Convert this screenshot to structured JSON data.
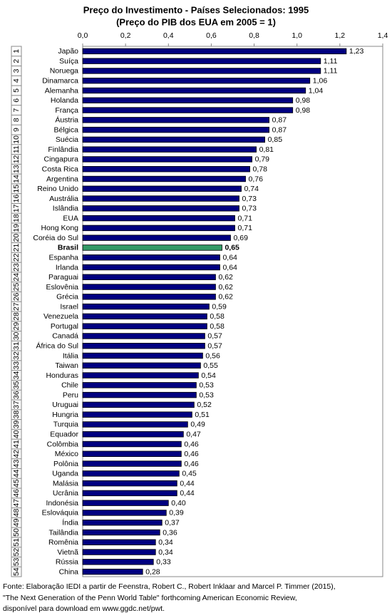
{
  "chart_data": {
    "type": "bar",
    "orientation": "horizontal",
    "title": "Preço do Investimento - Países Selecionados: 1995",
    "subtitle": "(Preço do PIB dos EUA em 2005 = 1)",
    "categories": [
      "Japão",
      "Suíça",
      "Noruega",
      "Dinamarca",
      "Alemanha",
      "Holanda",
      "França",
      "Áustria",
      "Bélgica",
      "Suécia",
      "Finlândia",
      "Cingapura",
      "Costa Rica",
      "Argentina",
      "Reino Unido",
      "Austrália",
      "Islândia",
      "EUA",
      "Hong Kong",
      "Coréia do Sul",
      "Brasil",
      "Espanha",
      "Irlanda",
      "Paraguai",
      "Eslovênia",
      "Grécia",
      "Israel",
      "Venezuela",
      "Portugal",
      "Canadá",
      "África do Sul",
      "Itália",
      "Taiwan",
      "Honduras",
      "Chile",
      "Peru",
      "Uruguai",
      "Hungria",
      "Turquia",
      "Equador",
      "Colômbia",
      "México",
      "Polônia",
      "Uganda",
      "Malásia",
      "Ucrânia",
      "Indonésia",
      "Eslováquia",
      "Índia",
      "Tailândia",
      "Romênia",
      "Vietnã",
      "Rússia",
      "China"
    ],
    "ranks": [
      1,
      2,
      3,
      4,
      5,
      6,
      7,
      8,
      9,
      10,
      11,
      12,
      13,
      14,
      15,
      16,
      17,
      18,
      19,
      20,
      21,
      22,
      23,
      24,
      25,
      26,
      27,
      28,
      29,
      30,
      31,
      32,
      33,
      34,
      35,
      36,
      37,
      38,
      39,
      40,
      41,
      42,
      43,
      44,
      45,
      46,
      47,
      48,
      49,
      50,
      51,
      52,
      53,
      54
    ],
    "values": [
      1.23,
      1.11,
      1.11,
      1.06,
      1.04,
      0.98,
      0.98,
      0.87,
      0.87,
      0.85,
      0.81,
      0.79,
      0.78,
      0.76,
      0.74,
      0.73,
      0.73,
      0.71,
      0.71,
      0.69,
      0.65,
      0.64,
      0.64,
      0.62,
      0.62,
      0.62,
      0.59,
      0.58,
      0.58,
      0.57,
      0.57,
      0.56,
      0.55,
      0.54,
      0.53,
      0.53,
      0.52,
      0.51,
      0.49,
      0.47,
      0.46,
      0.46,
      0.46,
      0.45,
      0.44,
      0.44,
      0.4,
      0.39,
      0.37,
      0.36,
      0.34,
      0.34,
      0.33,
      0.28
    ],
    "value_labels": [
      "1,23",
      "1,11",
      "1,11",
      "1,06",
      "1,04",
      "0,98",
      "0,98",
      "0,87",
      "0,87",
      "0,85",
      "0,81",
      "0,79",
      "0,78",
      "0,76",
      "0,74",
      "0,73",
      "0,73",
      "0,71",
      "0,71",
      "0,69",
      "0,65",
      "0,64",
      "0,64",
      "0,62",
      "0,62",
      "0,62",
      "0,59",
      "0,58",
      "0,58",
      "0,57",
      "0,57",
      "0,56",
      "0,55",
      "0,54",
      "0,53",
      "0,53",
      "0,52",
      "0,51",
      "0,49",
      "0,47",
      "0,46",
      "0,46",
      "0,46",
      "0,45",
      "0,44",
      "0,44",
      "0,40",
      "0,39",
      "0,37",
      "0,36",
      "0,34",
      "0,34",
      "0,33",
      "0,28"
    ],
    "color": "#000080",
    "colors": [
      "#000080",
      "#000080",
      "#000080",
      "#000080",
      "#000080",
      "#000080",
      "#000080",
      "#000080",
      "#000080",
      "#000080",
      "#000080",
      "#000080",
      "#000080",
      "#000080",
      "#000080",
      "#000080",
      "#000080",
      "#000080",
      "#000080",
      "#000080",
      "#339966",
      "#000080",
      "#000080",
      "#000080",
      "#000080",
      "#000080",
      "#000080",
      "#000080",
      "#000080",
      "#000080",
      "#000080",
      "#000080",
      "#000080",
      "#000080",
      "#000080",
      "#000080",
      "#000080",
      "#000080",
      "#000080",
      "#000080",
      "#000080",
      "#000080",
      "#000080",
      "#000080",
      "#000080",
      "#000080",
      "#000080",
      "#000080",
      "#000080",
      "#000080",
      "#000080",
      "#000080",
      "#000080",
      "#000080"
    ],
    "xlim": [
      0,
      1.4
    ],
    "xticks": [
      {
        "value": 0,
        "label": "0,0"
      },
      {
        "value": 0.2,
        "label": "0,2"
      },
      {
        "value": 0.4,
        "label": "0,4"
      },
      {
        "value": 0.6,
        "label": "0,6"
      },
      {
        "value": 0.8,
        "label": "0,8"
      },
      {
        "value": 1.0,
        "label": "1,0"
      },
      {
        "value": 1.2,
        "label": "1,2"
      },
      {
        "value": 1.4,
        "label": "1,4"
      }
    ],
    "grid": false,
    "source": [
      "Fonte: Elaboração IEDI a partir de Feenstra, Robert C., Robert Inklaar and Marcel P. Timmer (2015),",
      "\"The Next Generation of the Penn World Table\" forthcoming American Economic Review,",
      "disponível para download em www.ggdc.net/pwt."
    ]
  }
}
